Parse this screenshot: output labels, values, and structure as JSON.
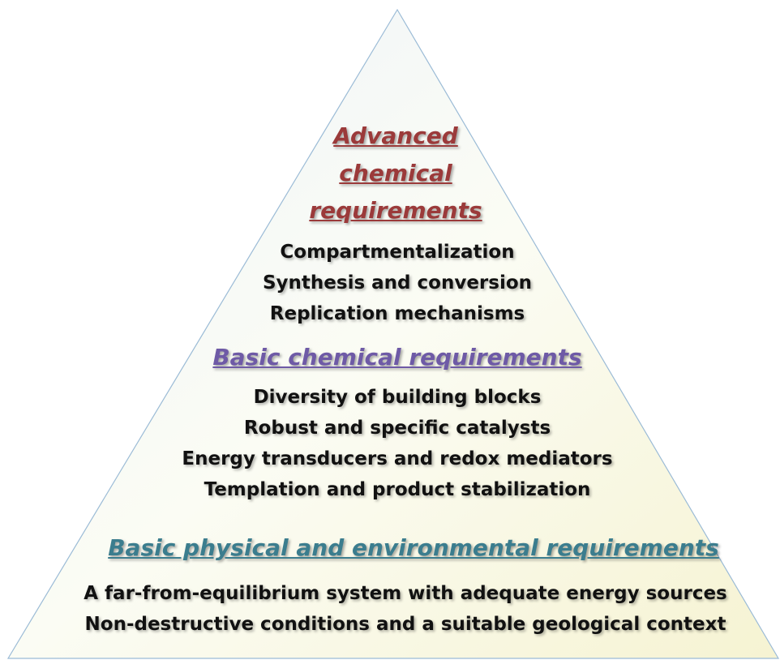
{
  "levels": [
    {
      "title": "Advanced chemical requirements",
      "items": [
        "Compartmentalization",
        "Synthesis and conversion",
        "Replication mechanisms"
      ]
    },
    {
      "title": "Basic chemical requirements",
      "items": [
        "Diversity of building blocks",
        "Robust and specific catalysts",
        "Energy transducers and redox mediators",
        "Templation and product stabilization"
      ]
    },
    {
      "title": "Basic physical and environmental requirements",
      "items": [
        "A far-from-equilibrium system with adequate energy sources",
        "Non-destructive conditions and a suitable geological context"
      ]
    }
  ]
}
